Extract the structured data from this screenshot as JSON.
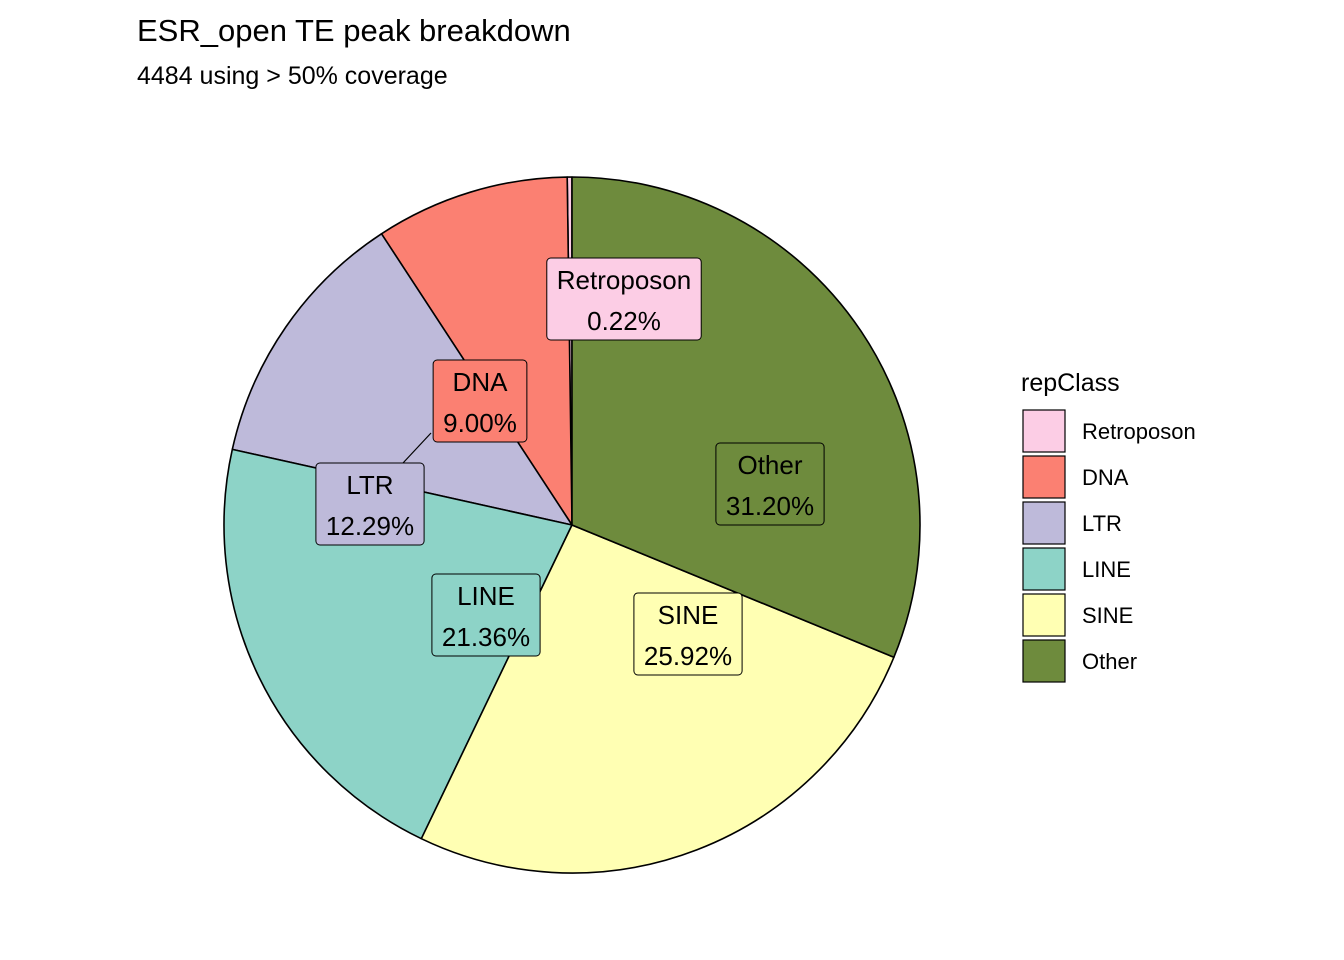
{
  "chart_data": {
    "type": "pie",
    "title": "ESR_open TE peak breakdown",
    "subtitle": "4484 using > 50% coverage",
    "legend": {
      "title": "repClass",
      "position": "right"
    },
    "slices": [
      {
        "label": "Retroposon",
        "percent_label": "0.22%",
        "value": 0.22,
        "color": "#FCCDE5"
      },
      {
        "label": "DNA",
        "percent_label": "9.00%",
        "value": 9.0,
        "color": "#FB8072"
      },
      {
        "label": "LTR",
        "percent_label": "12.29%",
        "value": 12.29,
        "color": "#BEBADA"
      },
      {
        "label": "LINE",
        "percent_label": "21.36%",
        "value": 21.36,
        "color": "#8DD3C7"
      },
      {
        "label": "SINE",
        "percent_label": "25.92%",
        "value": 25.92,
        "color": "#FFFFB3"
      },
      {
        "label": "Other",
        "percent_label": "31.20%",
        "value": 31.2,
        "color": "#6E8B3D"
      }
    ]
  }
}
